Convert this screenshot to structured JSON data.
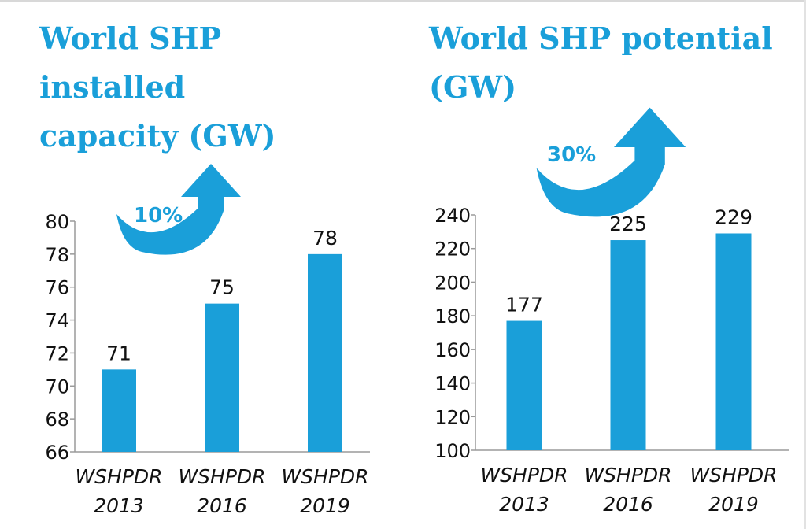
{
  "colors": {
    "accent": "#1a9fd9",
    "bar": "#1a9fd9",
    "axis": "#9a9a9a",
    "text": "#111111"
  },
  "icons": {
    "growth_arrow": "curved-up-arrow-icon"
  },
  "chart_data": [
    {
      "type": "bar",
      "title": "World SHP installed\ncapacity (GW)",
      "categories": [
        [
          "WSHPDR",
          "2013"
        ],
        [
          "WSHPDR",
          "2016"
        ],
        [
          "WSHPDR",
          "2019"
        ]
      ],
      "values": [
        71,
        75,
        78
      ],
      "data_labels": [
        "71",
        "75",
        "78"
      ],
      "ylim": [
        66,
        80
      ],
      "yticks": [
        66,
        68,
        70,
        72,
        74,
        76,
        78,
        80
      ],
      "annotation": "10%",
      "grid": false,
      "legend": "none"
    },
    {
      "type": "bar",
      "title": "World SHP potential\n(GW)",
      "categories": [
        [
          "WSHPDR",
          "2013"
        ],
        [
          "WSHPDR",
          "2016"
        ],
        [
          "WSHPDR",
          "2019"
        ]
      ],
      "values": [
        177,
        225,
        229
      ],
      "data_labels": [
        "177",
        "225",
        "229"
      ],
      "ylim": [
        100,
        240
      ],
      "yticks": [
        100,
        120,
        140,
        160,
        180,
        200,
        220,
        240
      ],
      "annotation": "30%",
      "grid": false,
      "legend": "none"
    }
  ]
}
